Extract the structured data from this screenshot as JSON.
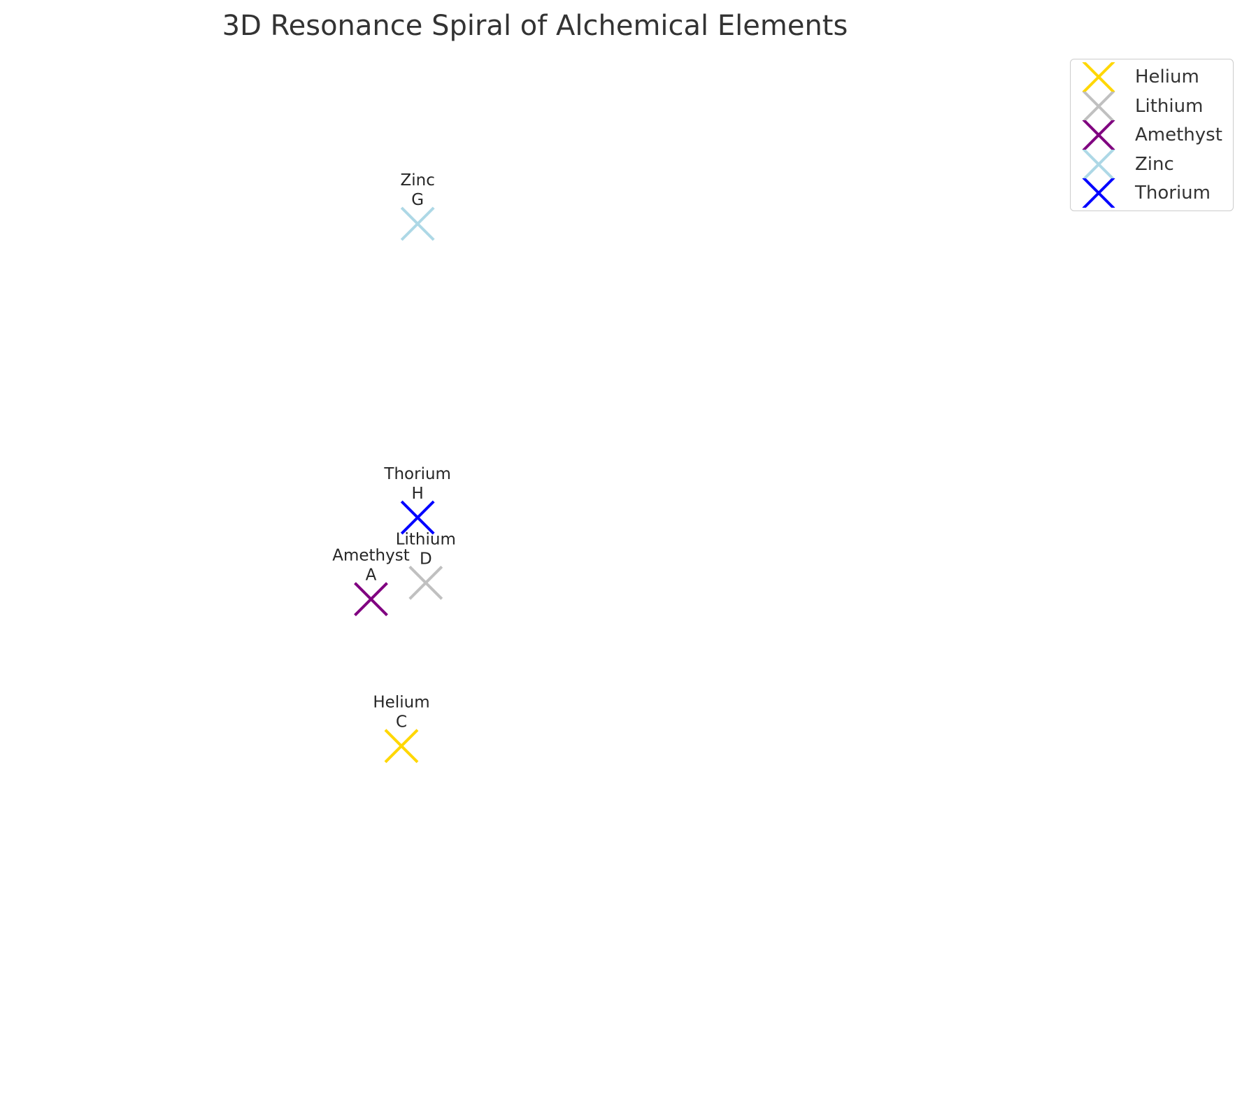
{
  "chart_data": {
    "type": "scatter",
    "title": "3D Resonance Spiral of Alchemical Elements",
    "xlabel": "",
    "ylabel": "",
    "grid": false,
    "legend_position": "top-right",
    "series": [
      {
        "name": "Helium",
        "color": "#FFD700",
        "marker": "x",
        "points": [
          {
            "label": "C",
            "x": 3.0,
            "y": 2.5
          }
        ]
      },
      {
        "name": "Lithium",
        "color": "#C0C0C0",
        "marker": "x",
        "points": [
          {
            "label": "D",
            "x": 3.6,
            "y": 5.0
          }
        ]
      },
      {
        "name": "Amethyst",
        "color": "#800080",
        "marker": "x",
        "points": [
          {
            "label": "A",
            "x": 2.25,
            "y": 4.75
          }
        ]
      },
      {
        "name": "Zinc",
        "color": "#ADD8E6",
        "marker": "x",
        "points": [
          {
            "label": "G",
            "x": 3.4,
            "y": 10.5
          }
        ]
      },
      {
        "name": "Thorium",
        "color": "#0000FF",
        "marker": "x",
        "points": [
          {
            "label": "H",
            "x": 3.4,
            "y": 6.0
          }
        ]
      }
    ]
  }
}
